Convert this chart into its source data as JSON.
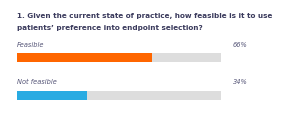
{
  "title_line1": "1. Given the current state of practice, how feasible is it to use",
  "title_line2": "patients’ preference into endpoint selection?",
  "categories": [
    "Feasible",
    "Not feasible"
  ],
  "values": [
    66,
    34
  ],
  "bar_colors": [
    "#FF6600",
    "#29ABE2"
  ],
  "bg_bar_color": "#DDDDDD",
  "background_color": "#FFFFFF",
  "title_fontsize": 5.2,
  "label_fontsize": 4.8,
  "pct_fontsize": 4.8,
  "title_color": "#3A3A5C",
  "label_color": "#555577",
  "pct_color": "#555577",
  "max_val": 100
}
